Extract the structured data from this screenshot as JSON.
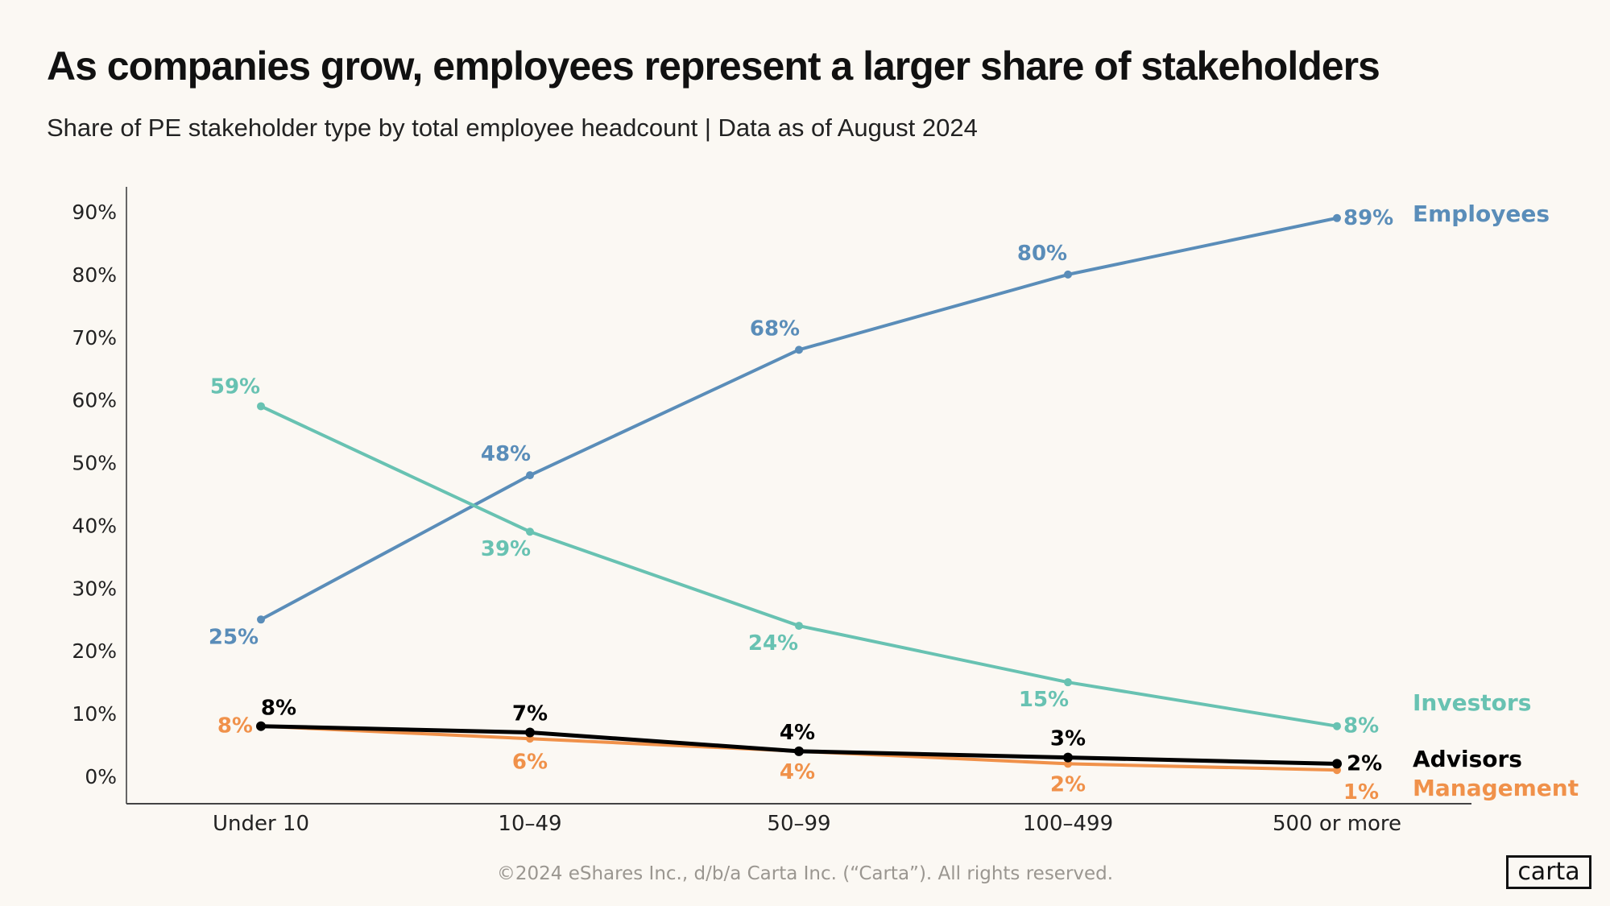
{
  "title": "As companies grow, employees represent a larger share of stakeholders",
  "subtitle": "Share of PE stakeholder type by total employee headcount | Data as of August 2024",
  "footer": "©2024 eShares Inc., d/b/a Carta Inc. (“Carta”). All rights reserved.",
  "logo": "carta",
  "chart_data": {
    "type": "line",
    "categories": [
      "Under 10",
      "10–49",
      "50–99",
      "100–499",
      "500 or more"
    ],
    "ylim": [
      0,
      90
    ],
    "yticks": [
      "0%",
      "10%",
      "20%",
      "30%",
      "40%",
      "50%",
      "60%",
      "70%",
      "80%",
      "90%"
    ],
    "grid": false,
    "legend": "right (inline series labels)",
    "series": [
      {
        "name": "Employees",
        "color": "#5a8db9",
        "values": [
          25,
          48,
          68,
          80,
          89
        ],
        "labels": [
          "25%",
          "48%",
          "68%",
          "80%",
          "89%"
        ]
      },
      {
        "name": "Investors",
        "color": "#68c2b2",
        "values": [
          59,
          39,
          24,
          15,
          8
        ],
        "labels": [
          "59%",
          "39%",
          "24%",
          "15%",
          "8%"
        ]
      },
      {
        "name": "Management",
        "color": "#f0914a",
        "values": [
          8,
          6,
          4,
          2,
          1
        ],
        "labels": [
          "8%",
          "6%",
          "4%",
          "2%",
          "1%"
        ]
      },
      {
        "name": "Advisors",
        "color": "#000000",
        "values": [
          8,
          7,
          4,
          3,
          2
        ],
        "labels": [
          "8%",
          "7%",
          "4%",
          "3%",
          "2%"
        ]
      }
    ]
  }
}
